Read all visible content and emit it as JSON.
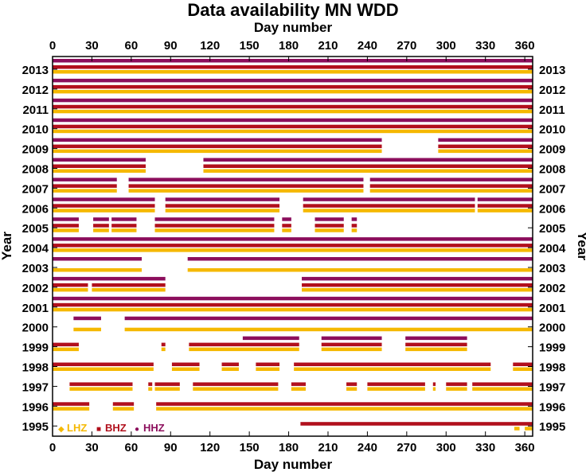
{
  "colors": {
    "lhz": "#f5b800",
    "bhz": "#b10f1c",
    "hhz": "#8c0e5c",
    "frame": "#000000"
  },
  "chart_data": {
    "type": "timeline",
    "title": "Data availability MN WDD",
    "xlabel_top": "Day number",
    "xlabel_bottom": "Day number",
    "ylabel_left": "Year",
    "ylabel_right": "Year",
    "xlim": [
      0,
      366
    ],
    "x_ticks": [
      0,
      30,
      60,
      90,
      120,
      150,
      180,
      210,
      240,
      270,
      300,
      330,
      360
    ],
    "x_tick_labels": [
      "0",
      "30",
      "60",
      "90",
      "120",
      "150",
      "180",
      "210",
      "240",
      "270",
      "300",
      "330",
      "360"
    ],
    "years": [
      "2013",
      "2012",
      "2011",
      "2010",
      "2009",
      "2008",
      "2007",
      "2006",
      "2005",
      "2004",
      "2003",
      "2002",
      "2001",
      "2000",
      "1999",
      "1998",
      "1997",
      "1996",
      "1995"
    ],
    "legend": [
      {
        "key": "lhz",
        "label": "LHZ",
        "marker": "◆"
      },
      {
        "key": "bhz",
        "label": "BHZ",
        "marker": "■"
      },
      {
        "key": "hhz",
        "label": "HHZ",
        "marker": "●"
      }
    ],
    "series": {
      "2013": {
        "hhz": [
          [
            0,
            366
          ]
        ],
        "bhz": [
          [
            0,
            366
          ]
        ],
        "lhz": [
          [
            0,
            366
          ]
        ]
      },
      "2012": {
        "hhz": [
          [
            0,
            366
          ]
        ],
        "bhz": [
          [
            0,
            366
          ]
        ],
        "lhz": [
          [
            0,
            366
          ]
        ]
      },
      "2011": {
        "hhz": [
          [
            0,
            366
          ]
        ],
        "bhz": [
          [
            0,
            366
          ]
        ],
        "lhz": [
          [
            0,
            366
          ]
        ]
      },
      "2010": {
        "hhz": [
          [
            0,
            366
          ]
        ],
        "bhz": [
          [
            0,
            366
          ]
        ],
        "lhz": [
          [
            0,
            366
          ]
        ]
      },
      "2009": {
        "hhz": [
          [
            0,
            251
          ],
          [
            294,
            366
          ]
        ],
        "bhz": [
          [
            0,
            251
          ],
          [
            294,
            366
          ]
        ],
        "lhz": [
          [
            0,
            251
          ],
          [
            294,
            366
          ]
        ]
      },
      "2008": {
        "hhz": [
          [
            0,
            71
          ],
          [
            115,
            366
          ]
        ],
        "bhz": [
          [
            0,
            71
          ],
          [
            115,
            366
          ]
        ],
        "lhz": [
          [
            0,
            71
          ],
          [
            115,
            366
          ]
        ]
      },
      "2007": {
        "hhz": [
          [
            0,
            49
          ],
          [
            58,
            237
          ],
          [
            242,
            366
          ]
        ],
        "bhz": [
          [
            0,
            49
          ],
          [
            58,
            237
          ],
          [
            242,
            366
          ]
        ],
        "lhz": [
          [
            0,
            49
          ],
          [
            58,
            237
          ],
          [
            242,
            366
          ]
        ]
      },
      "2006": {
        "hhz": [
          [
            0,
            78
          ],
          [
            86,
            173
          ],
          [
            191,
            322
          ],
          [
            324,
            366
          ]
        ],
        "bhz": [
          [
            0,
            78
          ],
          [
            86,
            173
          ],
          [
            191,
            322
          ],
          [
            324,
            366
          ]
        ],
        "lhz": [
          [
            0,
            78
          ],
          [
            86,
            173
          ],
          [
            191,
            322
          ],
          [
            324,
            366
          ]
        ]
      },
      "2005": {
        "hhz": [
          [
            0,
            20
          ],
          [
            31,
            43
          ],
          [
            45,
            64
          ],
          [
            78,
            169
          ],
          [
            175,
            182
          ],
          [
            200,
            222
          ],
          [
            228,
            232
          ]
        ],
        "bhz": [
          [
            0,
            20
          ],
          [
            31,
            43
          ],
          [
            45,
            64
          ],
          [
            78,
            169
          ],
          [
            175,
            182
          ],
          [
            200,
            222
          ],
          [
            228,
            232
          ]
        ],
        "lhz": [
          [
            0,
            20
          ],
          [
            31,
            43
          ],
          [
            45,
            64
          ],
          [
            78,
            169
          ],
          [
            175,
            182
          ],
          [
            200,
            222
          ],
          [
            228,
            232
          ]
        ]
      },
      "2004": {
        "hhz": [
          [
            0,
            366
          ]
        ],
        "bhz": [
          [
            0,
            366
          ]
        ],
        "lhz": [
          [
            0,
            366
          ]
        ]
      },
      "2003": {
        "hhz": [
          [
            0,
            68
          ],
          [
            103,
            366
          ]
        ],
        "bhz": [],
        "lhz": [
          [
            0,
            68
          ],
          [
            103,
            366
          ]
        ]
      },
      "2002": {
        "hhz": [
          [
            0,
            86
          ],
          [
            190,
            366
          ]
        ],
        "bhz": [
          [
            0,
            27
          ],
          [
            30,
            86
          ],
          [
            190,
            366
          ]
        ],
        "lhz": [
          [
            0,
            27
          ],
          [
            30,
            86
          ],
          [
            190,
            366
          ]
        ]
      },
      "2001": {
        "hhz": [
          [
            0,
            366
          ]
        ],
        "bhz": [
          [
            0,
            366
          ]
        ],
        "lhz": [
          [
            0,
            366
          ]
        ]
      },
      "2000": {
        "hhz": [
          [
            16,
            37
          ],
          [
            55,
            366
          ]
        ],
        "bhz": [],
        "lhz": [
          [
            16,
            37
          ],
          [
            55,
            366
          ]
        ]
      },
      "1999": {
        "hhz": [
          [
            145,
            188
          ],
          [
            205,
            251
          ],
          [
            269,
            316
          ]
        ],
        "bhz": [
          [
            0,
            20
          ],
          [
            83,
            86
          ],
          [
            104,
            188
          ],
          [
            205,
            251
          ],
          [
            269,
            316
          ]
        ],
        "lhz": [
          [
            0,
            20
          ],
          [
            83,
            86
          ],
          [
            104,
            188
          ],
          [
            205,
            251
          ],
          [
            269,
            316
          ]
        ]
      },
      "1998": {
        "hhz": [],
        "bhz": [
          [
            0,
            77
          ],
          [
            91,
            112
          ],
          [
            129,
            142
          ],
          [
            155,
            173
          ],
          [
            184,
            334
          ],
          [
            351,
            366
          ]
        ],
        "lhz": [
          [
            0,
            77
          ],
          [
            91,
            112
          ],
          [
            129,
            142
          ],
          [
            155,
            173
          ],
          [
            184,
            334
          ],
          [
            351,
            366
          ]
        ]
      },
      "1997": {
        "hhz": [],
        "bhz": [
          [
            13,
            61
          ],
          [
            73,
            76
          ],
          [
            78,
            97
          ],
          [
            107,
            172
          ],
          [
            182,
            193
          ],
          [
            224,
            232
          ],
          [
            240,
            284
          ],
          [
            290,
            292
          ],
          [
            300,
            316
          ],
          [
            320,
            366
          ]
        ],
        "lhz": [
          [
            13,
            61
          ],
          [
            73,
            76
          ],
          [
            78,
            97
          ],
          [
            107,
            172
          ],
          [
            182,
            193
          ],
          [
            224,
            232
          ],
          [
            240,
            284
          ],
          [
            290,
            292
          ],
          [
            300,
            316
          ],
          [
            320,
            366
          ]
        ]
      },
      "1996": {
        "hhz": [],
        "bhz": [
          [
            0,
            28
          ],
          [
            46,
            62
          ],
          [
            79,
            366
          ]
        ],
        "lhz": [
          [
            0,
            28
          ],
          [
            46,
            62
          ],
          [
            79,
            366
          ]
        ]
      },
      "1995": {
        "hhz": [],
        "bhz": [
          [
            189,
            366
          ]
        ],
        "lhz": [
          [
            352,
            356
          ],
          [
            360,
            366
          ]
        ]
      }
    }
  }
}
